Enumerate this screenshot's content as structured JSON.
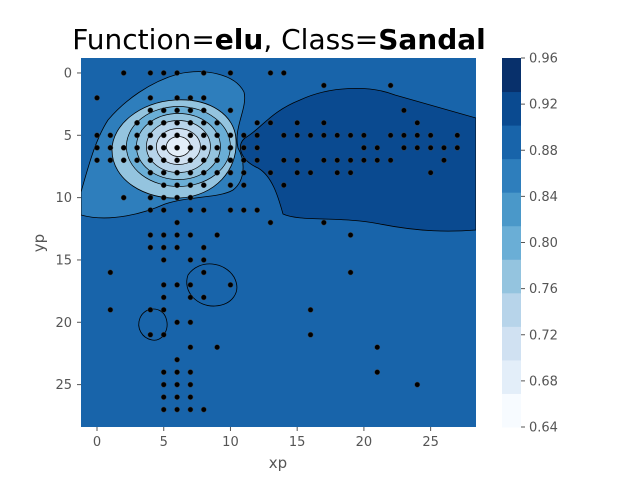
{
  "chart_data": {
    "type": "contour-scatter",
    "title": {
      "prefix": "Function=",
      "function": "elu",
      "middle": ", Class=",
      "class": "Sandal"
    },
    "xlabel": "xp",
    "ylabel": "yp",
    "xlim": [
      -1.2,
      28.4
    ],
    "ylim": [
      28.4,
      -1.2
    ],
    "x_ticks": [
      0,
      5,
      10,
      15,
      20,
      25
    ],
    "y_ticks": [
      0,
      5,
      10,
      15,
      20,
      25
    ],
    "colorbar": {
      "min": 0.64,
      "max": 0.96,
      "ticks": [
        "0.96",
        "0.92",
        "0.88",
        "0.84",
        "0.80",
        "0.76",
        "0.72",
        "0.68",
        "0.64"
      ],
      "colors": [
        "#f7fbff",
        "#e3eef9",
        "#d0e1f2",
        "#b7d4ea",
        "#94c4df",
        "#6aaed6",
        "#4a98c9",
        "#2e7ebc",
        "#1864aa",
        "#0a4a90",
        "#08306b"
      ]
    },
    "background_value": 0.905,
    "regions": [
      {
        "name": "right-dark-region",
        "value": 0.925
      },
      {
        "name": "upper-left-light-blob",
        "value": 0.86
      },
      {
        "name": "light-blob-inner",
        "value": 0.78
      },
      {
        "name": "light-blob-core",
        "value": 0.68
      },
      {
        "name": "small-blob-bottom",
        "value": 0.88
      },
      {
        "name": "small-blob-lower-left",
        "value": 0.88
      }
    ],
    "points": [
      [
        0,
        2
      ],
      [
        2,
        0
      ],
      [
        4,
        0
      ],
      [
        5,
        0
      ],
      [
        6,
        0
      ],
      [
        8,
        0
      ],
      [
        10,
        0
      ],
      [
        13,
        0
      ],
      [
        14,
        0
      ],
      [
        17,
        1
      ],
      [
        22,
        1
      ],
      [
        4,
        2
      ],
      [
        6,
        2
      ],
      [
        7,
        2
      ],
      [
        8,
        2
      ],
      [
        4,
        3
      ],
      [
        5,
        3
      ],
      [
        6,
        3
      ],
      [
        7,
        3
      ],
      [
        8,
        3
      ],
      [
        10,
        3
      ],
      [
        23,
        3
      ],
      [
        3,
        4
      ],
      [
        4,
        4
      ],
      [
        5,
        4
      ],
      [
        6,
        4
      ],
      [
        7,
        4
      ],
      [
        8,
        4
      ],
      [
        9,
        4
      ],
      [
        12,
        4
      ],
      [
        13,
        4
      ],
      [
        15,
        4
      ],
      [
        17,
        4
      ],
      [
        24,
        4
      ],
      [
        0,
        5
      ],
      [
        1,
        5
      ],
      [
        3,
        5
      ],
      [
        4,
        5
      ],
      [
        5,
        5
      ],
      [
        6,
        5
      ],
      [
        7,
        5
      ],
      [
        8,
        5
      ],
      [
        9,
        5
      ],
      [
        10,
        5
      ],
      [
        11,
        5
      ],
      [
        12,
        5
      ],
      [
        14,
        5
      ],
      [
        15,
        5
      ],
      [
        16,
        5
      ],
      [
        17,
        5
      ],
      [
        18,
        5
      ],
      [
        19,
        5
      ],
      [
        20,
        5
      ],
      [
        22,
        5
      ],
      [
        23,
        5
      ],
      [
        24,
        5
      ],
      [
        25,
        5
      ],
      [
        27,
        5
      ],
      [
        0,
        6
      ],
      [
        1,
        6
      ],
      [
        2,
        6
      ],
      [
        3,
        6
      ],
      [
        4,
        6
      ],
      [
        5,
        6
      ],
      [
        6,
        6
      ],
      [
        7,
        6
      ],
      [
        8,
        6
      ],
      [
        9,
        6
      ],
      [
        10,
        6
      ],
      [
        11,
        6
      ],
      [
        12,
        6
      ],
      [
        20,
        6
      ],
      [
        21,
        6
      ],
      [
        23,
        6
      ],
      [
        24,
        6
      ],
      [
        25,
        6
      ],
      [
        26,
        6
      ],
      [
        27,
        6
      ],
      [
        0,
        7
      ],
      [
        1,
        7
      ],
      [
        2,
        7
      ],
      [
        3,
        7
      ],
      [
        4,
        7
      ],
      [
        5,
        7
      ],
      [
        6,
        7
      ],
      [
        7,
        7
      ],
      [
        8,
        7
      ],
      [
        9,
        7
      ],
      [
        10,
        7
      ],
      [
        11,
        7
      ],
      [
        12,
        7
      ],
      [
        14,
        7
      ],
      [
        15,
        7
      ],
      [
        17,
        7
      ],
      [
        18,
        7
      ],
      [
        19,
        7
      ],
      [
        20,
        7
      ],
      [
        21,
        7
      ],
      [
        22,
        7
      ],
      [
        26,
        7
      ],
      [
        4,
        8
      ],
      [
        5,
        8
      ],
      [
        6,
        8
      ],
      [
        7,
        8
      ],
      [
        8,
        8
      ],
      [
        9,
        8
      ],
      [
        10,
        8
      ],
      [
        11,
        8
      ],
      [
        13,
        8
      ],
      [
        15,
        8
      ],
      [
        16,
        8
      ],
      [
        18,
        8
      ],
      [
        19,
        8
      ],
      [
        25,
        8
      ],
      [
        5,
        9
      ],
      [
        6,
        9
      ],
      [
        7,
        9
      ],
      [
        8,
        9
      ],
      [
        10,
        9
      ],
      [
        11,
        9
      ],
      [
        14,
        9
      ],
      [
        2,
        10
      ],
      [
        4,
        10
      ],
      [
        5,
        10
      ],
      [
        6,
        10
      ],
      [
        7,
        10
      ],
      [
        4,
        11
      ],
      [
        5,
        11
      ],
      [
        7,
        11
      ],
      [
        8,
        11
      ],
      [
        10,
        11
      ],
      [
        11,
        11
      ],
      [
        12,
        11
      ],
      [
        6,
        12
      ],
      [
        13,
        12
      ],
      [
        17,
        12
      ],
      [
        4,
        13
      ],
      [
        5,
        13
      ],
      [
        6,
        13
      ],
      [
        7,
        13
      ],
      [
        9,
        13
      ],
      [
        19,
        13
      ],
      [
        4,
        14
      ],
      [
        5,
        14
      ],
      [
        6,
        14
      ],
      [
        8,
        14
      ],
      [
        5,
        15
      ],
      [
        7,
        15
      ],
      [
        8,
        15
      ],
      [
        1,
        16
      ],
      [
        8,
        16
      ],
      [
        19,
        16
      ],
      [
        5,
        17
      ],
      [
        6,
        17
      ],
      [
        7,
        17
      ],
      [
        10,
        17
      ],
      [
        5,
        18
      ],
      [
        7,
        18
      ],
      [
        8,
        18
      ],
      [
        1,
        19
      ],
      [
        4,
        19
      ],
      [
        5,
        19
      ],
      [
        16,
        19
      ],
      [
        6,
        20
      ],
      [
        7,
        20
      ],
      [
        4,
        21
      ],
      [
        5,
        21
      ],
      [
        16,
        21
      ],
      [
        7,
        22
      ],
      [
        9,
        22
      ],
      [
        21,
        22
      ],
      [
        6,
        23
      ],
      [
        5,
        24
      ],
      [
        6,
        24
      ],
      [
        7,
        24
      ],
      [
        21,
        24
      ],
      [
        5,
        25
      ],
      [
        6,
        25
      ],
      [
        7,
        25
      ],
      [
        24,
        25
      ],
      [
        5,
        26
      ],
      [
        6,
        26
      ],
      [
        7,
        26
      ],
      [
        5,
        27
      ],
      [
        6,
        27
      ],
      [
        7,
        27
      ],
      [
        8,
        27
      ]
    ]
  }
}
